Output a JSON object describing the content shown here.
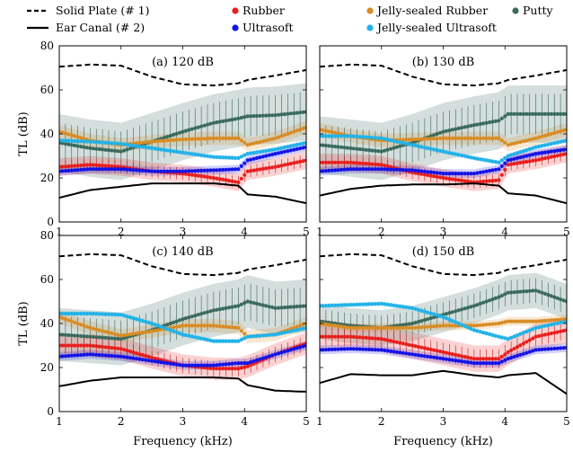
{
  "chart_data": {
    "type": "line",
    "layout": "2x2 grid",
    "legend": {
      "placement": "top",
      "entries": [
        {
          "name": "Solid Plate (# 1)",
          "style": "dashed-line",
          "color": "#000000"
        },
        {
          "name": "Ear Canal (# 2)",
          "style": "solid-line",
          "color": "#000000"
        },
        {
          "name": "Rubber",
          "style": "dot",
          "color": "#e8201e"
        },
        {
          "name": "Ultrasoft",
          "style": "dot",
          "color": "#1414e6"
        },
        {
          "name": "Jelly-sealed Rubber",
          "style": "dot",
          "color": "#d98c25"
        },
        {
          "name": "Jelly-sealed Ultrasoft",
          "style": "dot",
          "color": "#22b2e8"
        },
        {
          "name": "Putty",
          "style": "dot",
          "color": "#3a6b5e"
        }
      ]
    },
    "xlabel": "Frequency (kHz)",
    "ylabel": "TL (dB)",
    "xlim": [
      1,
      5
    ],
    "ylim": [
      0,
      80
    ],
    "xticks": [
      "1",
      "2",
      "3",
      "4",
      "5"
    ],
    "yticks": [
      "0",
      "20",
      "40",
      "60",
      "80"
    ],
    "panels": [
      {
        "title": "(a) 120 dB",
        "x": [
          1,
          1.5,
          2,
          2.5,
          3,
          3.5,
          3.9,
          4.05,
          4.5,
          5
        ],
        "series": [
          {
            "name": "Solid Plate (# 1)",
            "values": [
              70.5,
              71.5,
              71,
              66,
              62.5,
              62,
              63,
              64.5,
              66.5,
              69
            ],
            "band": 0
          },
          {
            "name": "Ear Canal (# 2)",
            "values": [
              11,
              14.5,
              16,
              17.5,
              17.5,
              17.5,
              16.5,
              12.5,
              11.5,
              8.5
            ],
            "band": 0
          },
          {
            "name": "Rubber",
            "values": [
              25,
              26,
              25,
              23,
              22,
              20,
              18,
              23,
              25,
              28
            ],
            "band": 4
          },
          {
            "name": "Ultrasoft",
            "values": [
              23,
              24,
              24,
              23,
              23,
              23.5,
              24,
              28,
              31,
              34
            ],
            "band": 2
          },
          {
            "name": "Jelly-sealed Rubber",
            "values": [
              41,
              37,
              35,
              36.5,
              37.5,
              38,
              38,
              35,
              38,
              43
            ],
            "band": 3
          },
          {
            "name": "Jelly-sealed Ultrasoft",
            "values": [
              37,
              36.5,
              35.5,
              33.5,
              31.5,
              29.5,
              29,
              31,
              33,
              36
            ],
            "band": 1
          },
          {
            "name": "Putty",
            "values": [
              36,
              33.5,
              32,
              36.5,
              41,
              45,
              47,
              48,
              48.5,
              50
            ],
            "band": 13
          }
        ]
      },
      {
        "title": "(b) 130 dB",
        "x": [
          1,
          1.5,
          2,
          2.5,
          3,
          3.5,
          3.9,
          4.05,
          4.5,
          5
        ],
        "series": [
          {
            "name": "Solid Plate (# 1)",
            "values": [
              70.5,
              71.5,
              71,
              66,
              62.5,
              62,
              63,
              64.5,
              66.5,
              69
            ],
            "band": 0
          },
          {
            "name": "Ear Canal (# 2)",
            "values": [
              12,
              15,
              16.5,
              17,
              17,
              17.5,
              16.5,
              13,
              12,
              8.5
            ],
            "band": 0
          },
          {
            "name": "Rubber",
            "values": [
              27,
              27,
              26,
              22.5,
              20,
              18,
              19,
              26,
              28,
              31
            ],
            "band": 4
          },
          {
            "name": "Ultrasoft",
            "values": [
              23,
              24,
              24,
              23.5,
              22,
              22,
              24,
              28,
              31,
              33
            ],
            "band": 2
          },
          {
            "name": "Jelly-sealed Rubber",
            "values": [
              42,
              39,
              37,
              37.5,
              38,
              38,
              38,
              35,
              38,
              42
            ],
            "band": 3
          },
          {
            "name": "Jelly-sealed Ultrasoft",
            "values": [
              39,
              39,
              38,
              35,
              32,
              29,
              27,
              30,
              34,
              37
            ],
            "band": 1
          },
          {
            "name": "Putty",
            "values": [
              35,
              33.5,
              32,
              36,
              41,
              44,
              46,
              49,
              49,
              49
            ],
            "band": 13
          }
        ]
      },
      {
        "title": "(c) 140 dB",
        "x": [
          1,
          1.5,
          2,
          2.5,
          3,
          3.5,
          3.9,
          4.05,
          4.5,
          5
        ],
        "series": [
          {
            "name": "Solid Plate (# 1)",
            "values": [
              70.5,
              71.5,
              71,
              66,
              62.5,
              62,
              63,
              64.5,
              66.5,
              69
            ],
            "band": 0
          },
          {
            "name": "Ear Canal (# 2)",
            "values": [
              11.5,
              14,
              15.5,
              15.5,
              15.5,
              15.5,
              15,
              12,
              9.5,
              9
            ],
            "band": 0
          },
          {
            "name": "Rubber",
            "values": [
              30,
              30,
              28.5,
              24.5,
              21,
              19.5,
              19.5,
              20.5,
              26,
              31
            ],
            "band": 5
          },
          {
            "name": "Ultrasoft",
            "values": [
              25,
              26,
              25,
              23,
              21,
              21,
              22,
              22,
              26,
              30
            ],
            "band": 2
          },
          {
            "name": "Jelly-sealed Rubber",
            "values": [
              43,
              38,
              34.5,
              36.5,
              39,
              39,
              38,
              34,
              35,
              40
            ],
            "band": 3
          },
          {
            "name": "Jelly-sealed Ultrasoft",
            "values": [
              44.5,
              44.5,
              44,
              40,
              35,
              32,
              32,
              34,
              35,
              38
            ],
            "band": 1
          },
          {
            "name": "Putty",
            "values": [
              35,
              34,
              33,
              37,
              42,
              46,
              48,
              50,
              47,
              48
            ],
            "band": 12
          }
        ]
      },
      {
        "title": "(d) 150 dB",
        "x": [
          1,
          1.5,
          2,
          2.5,
          3,
          3.5,
          3.9,
          4.05,
          4.5,
          5
        ],
        "series": [
          {
            "name": "Solid Plate (# 1)",
            "values": [
              70.5,
              71.5,
              71,
              66,
              62.5,
              62,
              63,
              64.5,
              66.5,
              69
            ],
            "band": 0
          },
          {
            "name": "Ear Canal (# 2)",
            "values": [
              13,
              17,
              16.5,
              16.5,
              18.5,
              16.5,
              15.5,
              16.5,
              17.5,
              8
            ],
            "band": 0
          },
          {
            "name": "Rubber",
            "values": [
              34,
              34,
              33,
              30,
              27,
              24,
              24,
              27,
              34,
              37
            ],
            "band": 6
          },
          {
            "name": "Ultrasoft",
            "values": [
              28,
              28.5,
              28,
              26,
              24,
              22,
              22,
              24,
              28,
              29
            ],
            "band": 2
          },
          {
            "name": "Jelly-sealed Rubber",
            "values": [
              40,
              38,
              38,
              38,
              39,
              39,
              40,
              41,
              41,
              42
            ],
            "band": 2
          },
          {
            "name": "Jelly-sealed Ultrasoft",
            "values": [
              48,
              48.5,
              49,
              47,
              43,
              37,
              34,
              33,
              38,
              41
            ],
            "band": 1
          },
          {
            "name": "Putty",
            "values": [
              41,
              39,
              38,
              40,
              44,
              48,
              52,
              54,
              55,
              50
            ],
            "band": 8
          }
        ]
      }
    ]
  }
}
